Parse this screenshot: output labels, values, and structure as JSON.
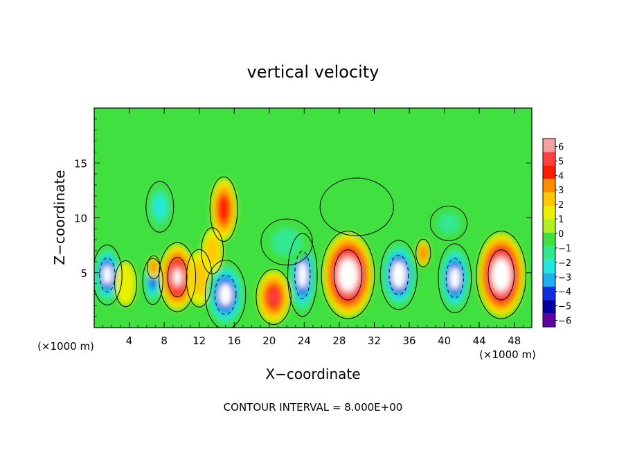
{
  "chart_data": {
    "type": "heatmap",
    "title": "vertical velocity",
    "xlabel": "X−coordinate",
    "ylabel": "Z−coordinate",
    "x_unit_left": "(×1000 m)",
    "x_unit_right": "(×1000 m)",
    "xlim": [
      0,
      50
    ],
    "ylim": [
      0,
      20
    ],
    "x_ticks": [
      4,
      8,
      12,
      16,
      20,
      24,
      28,
      32,
      36,
      40,
      44,
      48
    ],
    "y_ticks": [
      5,
      10,
      15
    ],
    "colorbar": {
      "labels": [
        "6",
        "5",
        "4",
        "3",
        "2",
        "1",
        "0",
        "−1",
        "−2",
        "−3",
        "−4",
        "−5",
        "−6"
      ],
      "range": [
        -6,
        6
      ],
      "colors": [
        "#f4a0a0",
        "#ff4040",
        "#ff1a00",
        "#ff8c00",
        "#ffc800",
        "#e8f000",
        "#b0f020",
        "#40e040",
        "#30e890",
        "#20e8e0",
        "#20b0f0",
        "#1030e0",
        "#0000a0",
        "#6000a0"
      ]
    },
    "background_value": 0,
    "cells": [
      {
        "x": 1.5,
        "z": 4.8,
        "rx": 1.6,
        "rz": 2.6,
        "w": -6.5
      },
      {
        "x": 3.6,
        "z": 4.0,
        "rx": 1.2,
        "rz": 2.0,
        "w": 1.2
      },
      {
        "x": 6.7,
        "z": 4.2,
        "rx": 1.1,
        "rz": 2.0,
        "w": -4.5
      },
      {
        "x": 6.8,
        "z": 5.5,
        "rx": 0.7,
        "rz": 1.0,
        "w": 3.5
      },
      {
        "x": 9.5,
        "z": 4.6,
        "rx": 2.0,
        "rz": 3.0,
        "w": 7.0
      },
      {
        "x": 12.0,
        "z": 4.5,
        "rx": 1.4,
        "rz": 2.5,
        "w": 2.0
      },
      {
        "x": 7.5,
        "z": 11.0,
        "rx": 1.5,
        "rz": 2.2,
        "w": -2.5
      },
      {
        "x": 15.0,
        "z": 3.0,
        "rx": 2.2,
        "rz": 3.0,
        "w": -7.0
      },
      {
        "x": 14.8,
        "z": 10.8,
        "rx": 1.5,
        "rz": 2.8,
        "w": 4.5
      },
      {
        "x": 13.5,
        "z": 7.0,
        "rx": 1.2,
        "rz": 2.0,
        "w": 2.0
      },
      {
        "x": 20.5,
        "z": 2.8,
        "rx": 1.9,
        "rz": 2.4,
        "w": 5.0
      },
      {
        "x": 23.8,
        "z": 4.8,
        "rx": 1.6,
        "rz": 3.6,
        "w": -6.8
      },
      {
        "x": 22.0,
        "z": 7.8,
        "rx": 2.8,
        "rz": 2.0,
        "w": -2.0
      },
      {
        "x": 29.0,
        "z": 4.8,
        "rx": 2.9,
        "rz": 3.8,
        "w": 9.0
      },
      {
        "x": 34.8,
        "z": 4.8,
        "rx": 2.0,
        "rz": 3.0,
        "w": -7.5
      },
      {
        "x": 37.6,
        "z": 6.8,
        "rx": 0.8,
        "rz": 1.2,
        "w": 3.5
      },
      {
        "x": 41.2,
        "z": 4.5,
        "rx": 1.8,
        "rz": 3.0,
        "w": -7.0
      },
      {
        "x": 46.5,
        "z": 4.8,
        "rx": 2.7,
        "rz": 3.8,
        "w": 9.0
      },
      {
        "x": 40.5,
        "z": 9.5,
        "rx": 2.0,
        "rz": 1.5,
        "w": -1.5
      },
      {
        "x": 30.0,
        "z": 11.0,
        "rx": 4.0,
        "rz": 2.5,
        "w": -1.0
      }
    ],
    "footnote": "CONTOUR INTERVAL = 8.000E+00"
  }
}
